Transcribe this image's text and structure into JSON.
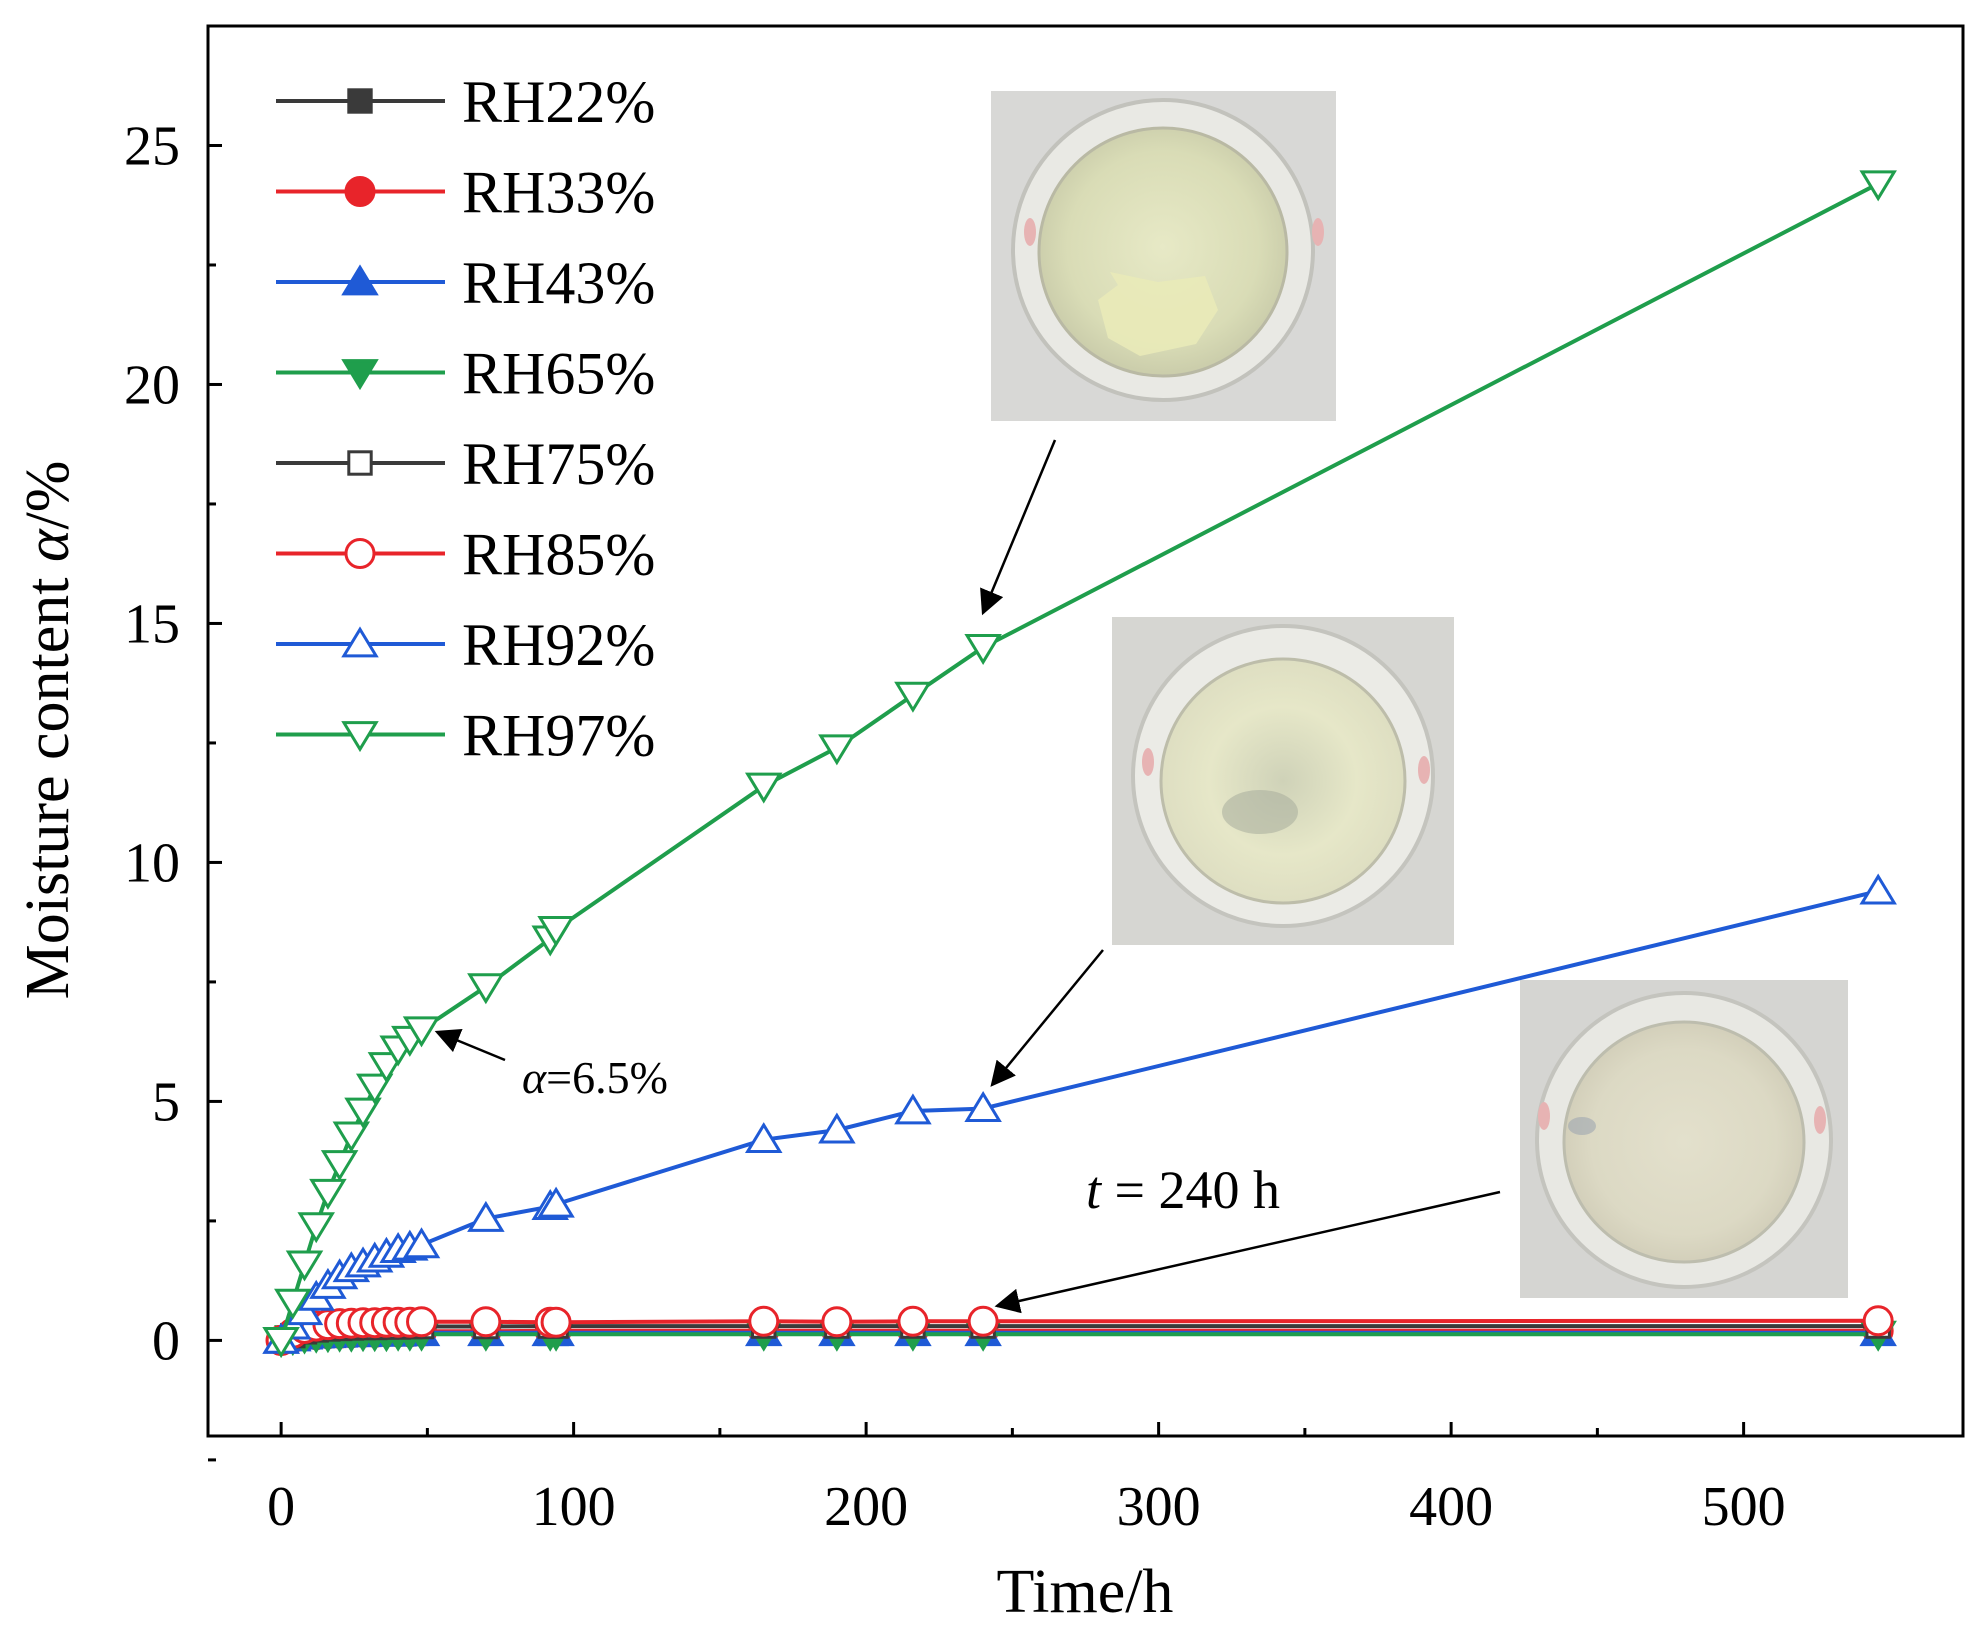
{
  "chart_data": {
    "type": "line",
    "title": "",
    "xlabel": "Time/h",
    "ylabel_prefix": "Moisture content ",
    "ylabel_symbol": "α",
    "ylabel_suffix": "/%",
    "xlim": [
      -25,
      575
    ],
    "ylim": [
      -2,
      27.5
    ],
    "xticks": [
      0,
      100,
      200,
      300,
      400,
      500
    ],
    "yticks": [
      0,
      5,
      10,
      15,
      20,
      25
    ],
    "grid": false,
    "legend_position": "top-left",
    "colors": {
      "black": "#3a3a3a",
      "red": "#e8242a",
      "blue": "#1f5ad6",
      "green": "#1f9e4c",
      "axis": "#000000"
    },
    "x": [
      0,
      4,
      8,
      12,
      16,
      20,
      24,
      28,
      32,
      36,
      40,
      44,
      48,
      70,
      92,
      94,
      165,
      190,
      216,
      240,
      546
    ],
    "series": [
      {
        "name": "RH22%",
        "color": "black",
        "marker": "square",
        "filled": true,
        "values": [
          0,
          0.05,
          0.08,
          0.1,
          0.11,
          0.12,
          0.13,
          0.13,
          0.14,
          0.14,
          0.15,
          0.15,
          0.15,
          0.15,
          0.15,
          0.15,
          0.15,
          0.15,
          0.15,
          0.15,
          0.15
        ]
      },
      {
        "name": "RH33%",
        "color": "red",
        "marker": "circle",
        "filled": true,
        "values": [
          0,
          0.06,
          0.1,
          0.12,
          0.14,
          0.15,
          0.16,
          0.17,
          0.17,
          0.18,
          0.18,
          0.18,
          0.19,
          0.19,
          0.2,
          0.2,
          0.2,
          0.2,
          0.2,
          0.2,
          0.2
        ]
      },
      {
        "name": "RH43%",
        "color": "blue",
        "marker": "triangle-up",
        "filled": true,
        "values": [
          0,
          0.05,
          0.09,
          0.11,
          0.12,
          0.13,
          0.14,
          0.14,
          0.15,
          0.15,
          0.15,
          0.16,
          0.16,
          0.16,
          0.16,
          0.16,
          0.16,
          0.16,
          0.16,
          0.16,
          0.16
        ]
      },
      {
        "name": "RH65%",
        "color": "green",
        "marker": "triangle-down",
        "filled": true,
        "values": [
          0,
          0.04,
          0.07,
          0.09,
          0.1,
          0.11,
          0.11,
          0.12,
          0.12,
          0.12,
          0.13,
          0.13,
          0.13,
          0.13,
          0.13,
          0.13,
          0.13,
          0.13,
          0.13,
          0.13,
          0.13
        ]
      },
      {
        "name": "RH75%",
        "color": "black",
        "marker": "square",
        "filled": false,
        "values": [
          0,
          0.1,
          0.18,
          0.22,
          0.24,
          0.25,
          0.26,
          0.27,
          0.27,
          0.28,
          0.28,
          0.29,
          0.29,
          0.29,
          0.3,
          0.3,
          0.3,
          0.3,
          0.3,
          0.3,
          0.3
        ]
      },
      {
        "name": "RH85%",
        "color": "red",
        "marker": "circle",
        "filled": false,
        "values": [
          0,
          0.15,
          0.25,
          0.3,
          0.33,
          0.35,
          0.36,
          0.37,
          0.37,
          0.38,
          0.38,
          0.38,
          0.39,
          0.39,
          0.38,
          0.38,
          0.4,
          0.39,
          0.4,
          0.4,
          0.41
        ]
      },
      {
        "name": "RH92%",
        "color": "blue",
        "marker": "triangle-up",
        "filled": false,
        "values": [
          0,
          0.3,
          0.6,
          0.9,
          1.15,
          1.35,
          1.5,
          1.6,
          1.7,
          1.8,
          1.9,
          1.95,
          2.0,
          2.55,
          2.8,
          2.85,
          4.2,
          4.4,
          4.8,
          4.85,
          9.4
        ]
      },
      {
        "name": "RH97%",
        "color": "green",
        "marker": "triangle-down",
        "filled": false,
        "values": [
          0,
          0.8,
          1.6,
          2.4,
          3.1,
          3.7,
          4.3,
          4.8,
          5.3,
          5.75,
          6.1,
          6.3,
          6.5,
          7.4,
          8.4,
          8.6,
          11.6,
          12.4,
          13.5,
          14.5,
          24.2
        ]
      }
    ],
    "annotations": [
      {
        "prefix": "",
        "symbol": "α",
        "suffix": "=6.5%",
        "point_x": 52,
        "point_y": 6.5
      },
      {
        "prefix": "",
        "symbol": "t",
        "suffix": " = 240 h",
        "point_x": 245,
        "point_y": 0.7
      }
    ],
    "photo_insets": [
      {
        "name": "photo-rh97",
        "state": "liquid",
        "arrow_to_x": 240,
        "arrow_to_y": 14.5
      },
      {
        "name": "photo-rh92",
        "state": "clumped-powder",
        "arrow_to_x": 240,
        "arrow_to_y": 5.0
      },
      {
        "name": "photo-rh85",
        "state": "dry-powder",
        "arrow_to_x": 245,
        "arrow_to_y": 0.7
      }
    ]
  }
}
